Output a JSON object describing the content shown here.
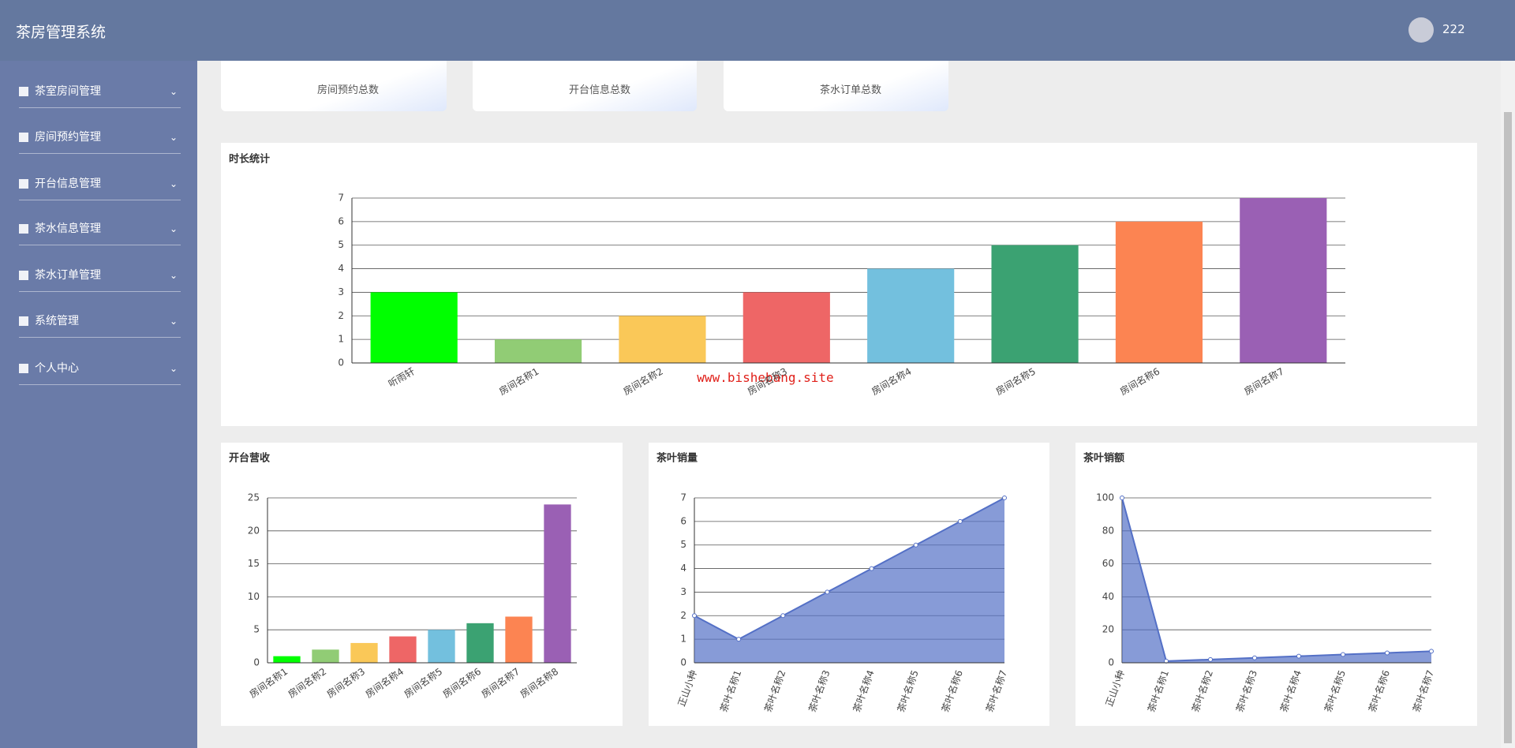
{
  "header": {
    "title": "茶房管理系统",
    "user": "222"
  },
  "sidebar": [
    "茶室房间管理",
    "房间预约管理",
    "开台信息管理",
    "茶水信息管理",
    "茶水订单管理",
    "系统管理",
    "个人中心"
  ],
  "cards": [
    "房间预约总数",
    "开台信息总数",
    "茶水订单总数"
  ],
  "watermark": "www.bishebang.site",
  "chart_data": [
    {
      "type": "bar",
      "title": "时长统计",
      "categories": [
        "听雨轩",
        "房间名称1",
        "房间名称2",
        "房间名称3",
        "房间名称4",
        "房间名称5",
        "房间名称6",
        "房间名称7"
      ],
      "values": [
        3,
        1,
        2,
        3,
        4,
        5,
        6,
        7
      ],
      "colors": [
        "#00ff00",
        "#91cc75",
        "#fac858",
        "#ee6666",
        "#73c0de",
        "#3ba272",
        "#fc8452",
        "#9a60b4"
      ],
      "ylim": [
        0,
        7
      ],
      "yticks": [
        0,
        1,
        2,
        3,
        4,
        5,
        6,
        7
      ],
      "grid": true
    },
    {
      "type": "bar",
      "title": "开台营收",
      "categories": [
        "房间名称1",
        "房间名称2",
        "房间名称3",
        "房间名称4",
        "房间名称5",
        "房间名称6",
        "房间名称7",
        "房间名称8"
      ],
      "values": [
        1,
        2,
        3,
        4,
        5,
        6,
        7,
        24
      ],
      "colors": [
        "#00ff00",
        "#91cc75",
        "#fac858",
        "#ee6666",
        "#73c0de",
        "#3ba272",
        "#fc8452",
        "#9a60b4"
      ],
      "ylim": [
        0,
        25
      ],
      "yticks": [
        0,
        5,
        10,
        15,
        20,
        25
      ],
      "grid": true
    },
    {
      "type": "area",
      "title": "茶叶销量",
      "categories": [
        "正山小种",
        "茶叶名称1",
        "茶叶名称2",
        "茶叶名称3",
        "茶叶名称4",
        "茶叶名称5",
        "茶叶名称6",
        "茶叶名称7"
      ],
      "values": [
        2,
        1,
        2,
        3,
        4,
        5,
        6,
        7
      ],
      "color": "#5470c6",
      "ylim": [
        0,
        7
      ],
      "yticks": [
        0,
        1,
        2,
        3,
        4,
        5,
        6,
        7
      ],
      "grid": true
    },
    {
      "type": "area",
      "title": "茶叶销额",
      "categories": [
        "正山小种",
        "茶叶名称1",
        "茶叶名称2",
        "茶叶名称3",
        "茶叶名称4",
        "茶叶名称5",
        "茶叶名称6",
        "茶叶名称7"
      ],
      "values": [
        100,
        1,
        2,
        3,
        4,
        5,
        6,
        7
      ],
      "color": "#5470c6",
      "ylim": [
        0,
        100
      ],
      "yticks": [
        0,
        20,
        40,
        60,
        80,
        100
      ],
      "grid": true
    }
  ]
}
